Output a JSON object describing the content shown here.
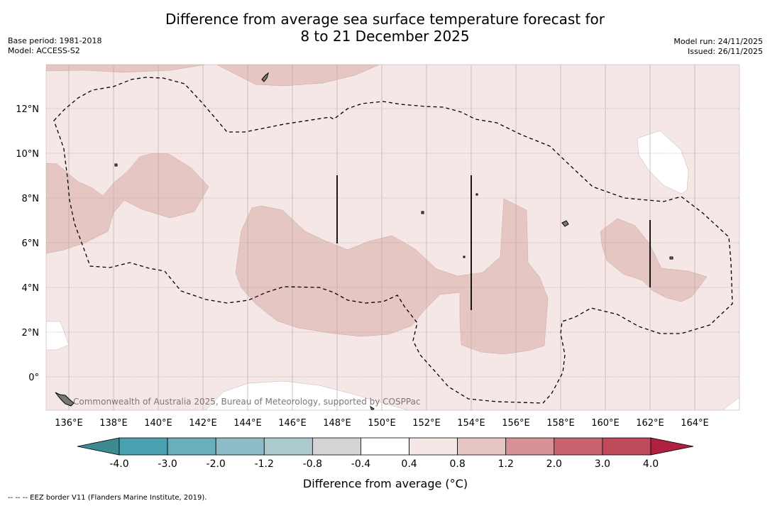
{
  "title": {
    "line1": "Difference from average sea surface temperature forecast for",
    "line2": "8 to 21 December 2025"
  },
  "meta": {
    "base_period": "Base period: 1981-2018",
    "model": "Model: ACCESS-S2",
    "model_run": "Model run: 24/11/2025",
    "issued": "Issued: 26/11/2025"
  },
  "map": {
    "lat_labels": [
      "12°N",
      "10°N",
      "8°N",
      "6°N",
      "4°N",
      "2°N",
      "0°"
    ],
    "lon_labels": [
      "136°E",
      "138°E",
      "140°E",
      "142°E",
      "144°E",
      "146°E",
      "148°E",
      "150°E",
      "152°E",
      "154°E",
      "156°E",
      "158°E",
      "160°E",
      "162°E",
      "164°E"
    ],
    "attribution": "Commonwealth of Australia 2025, Bureau of Meteorology, supported by COSPPac",
    "extent": {
      "lon_min": 135,
      "lon_max": 166,
      "lat_min": -1.5,
      "lat_max": 14
    }
  },
  "colorbar": {
    "label": "Difference from average (°C)",
    "ticks": [
      "-4.0",
      "-3.0",
      "-2.0",
      "-1.2",
      "-0.8",
      "-0.4",
      "0.4",
      "0.8",
      "1.2",
      "2.0",
      "3.0",
      "4.0"
    ],
    "colors": [
      "#4a9fb0",
      "#6aaebc",
      "#8bbcc7",
      "#acc9ce",
      "#d4d4d4",
      "#ffffff",
      "#f5e7e6",
      "#e6c6c2",
      "#d69296",
      "#c9646f",
      "#be4a5a"
    ],
    "under_color": "#3d8a92",
    "over_color": "#b02040"
  },
  "footnote": "--  --  -- EEZ border V11 (Flanders Marine Institute, 2019)."
}
